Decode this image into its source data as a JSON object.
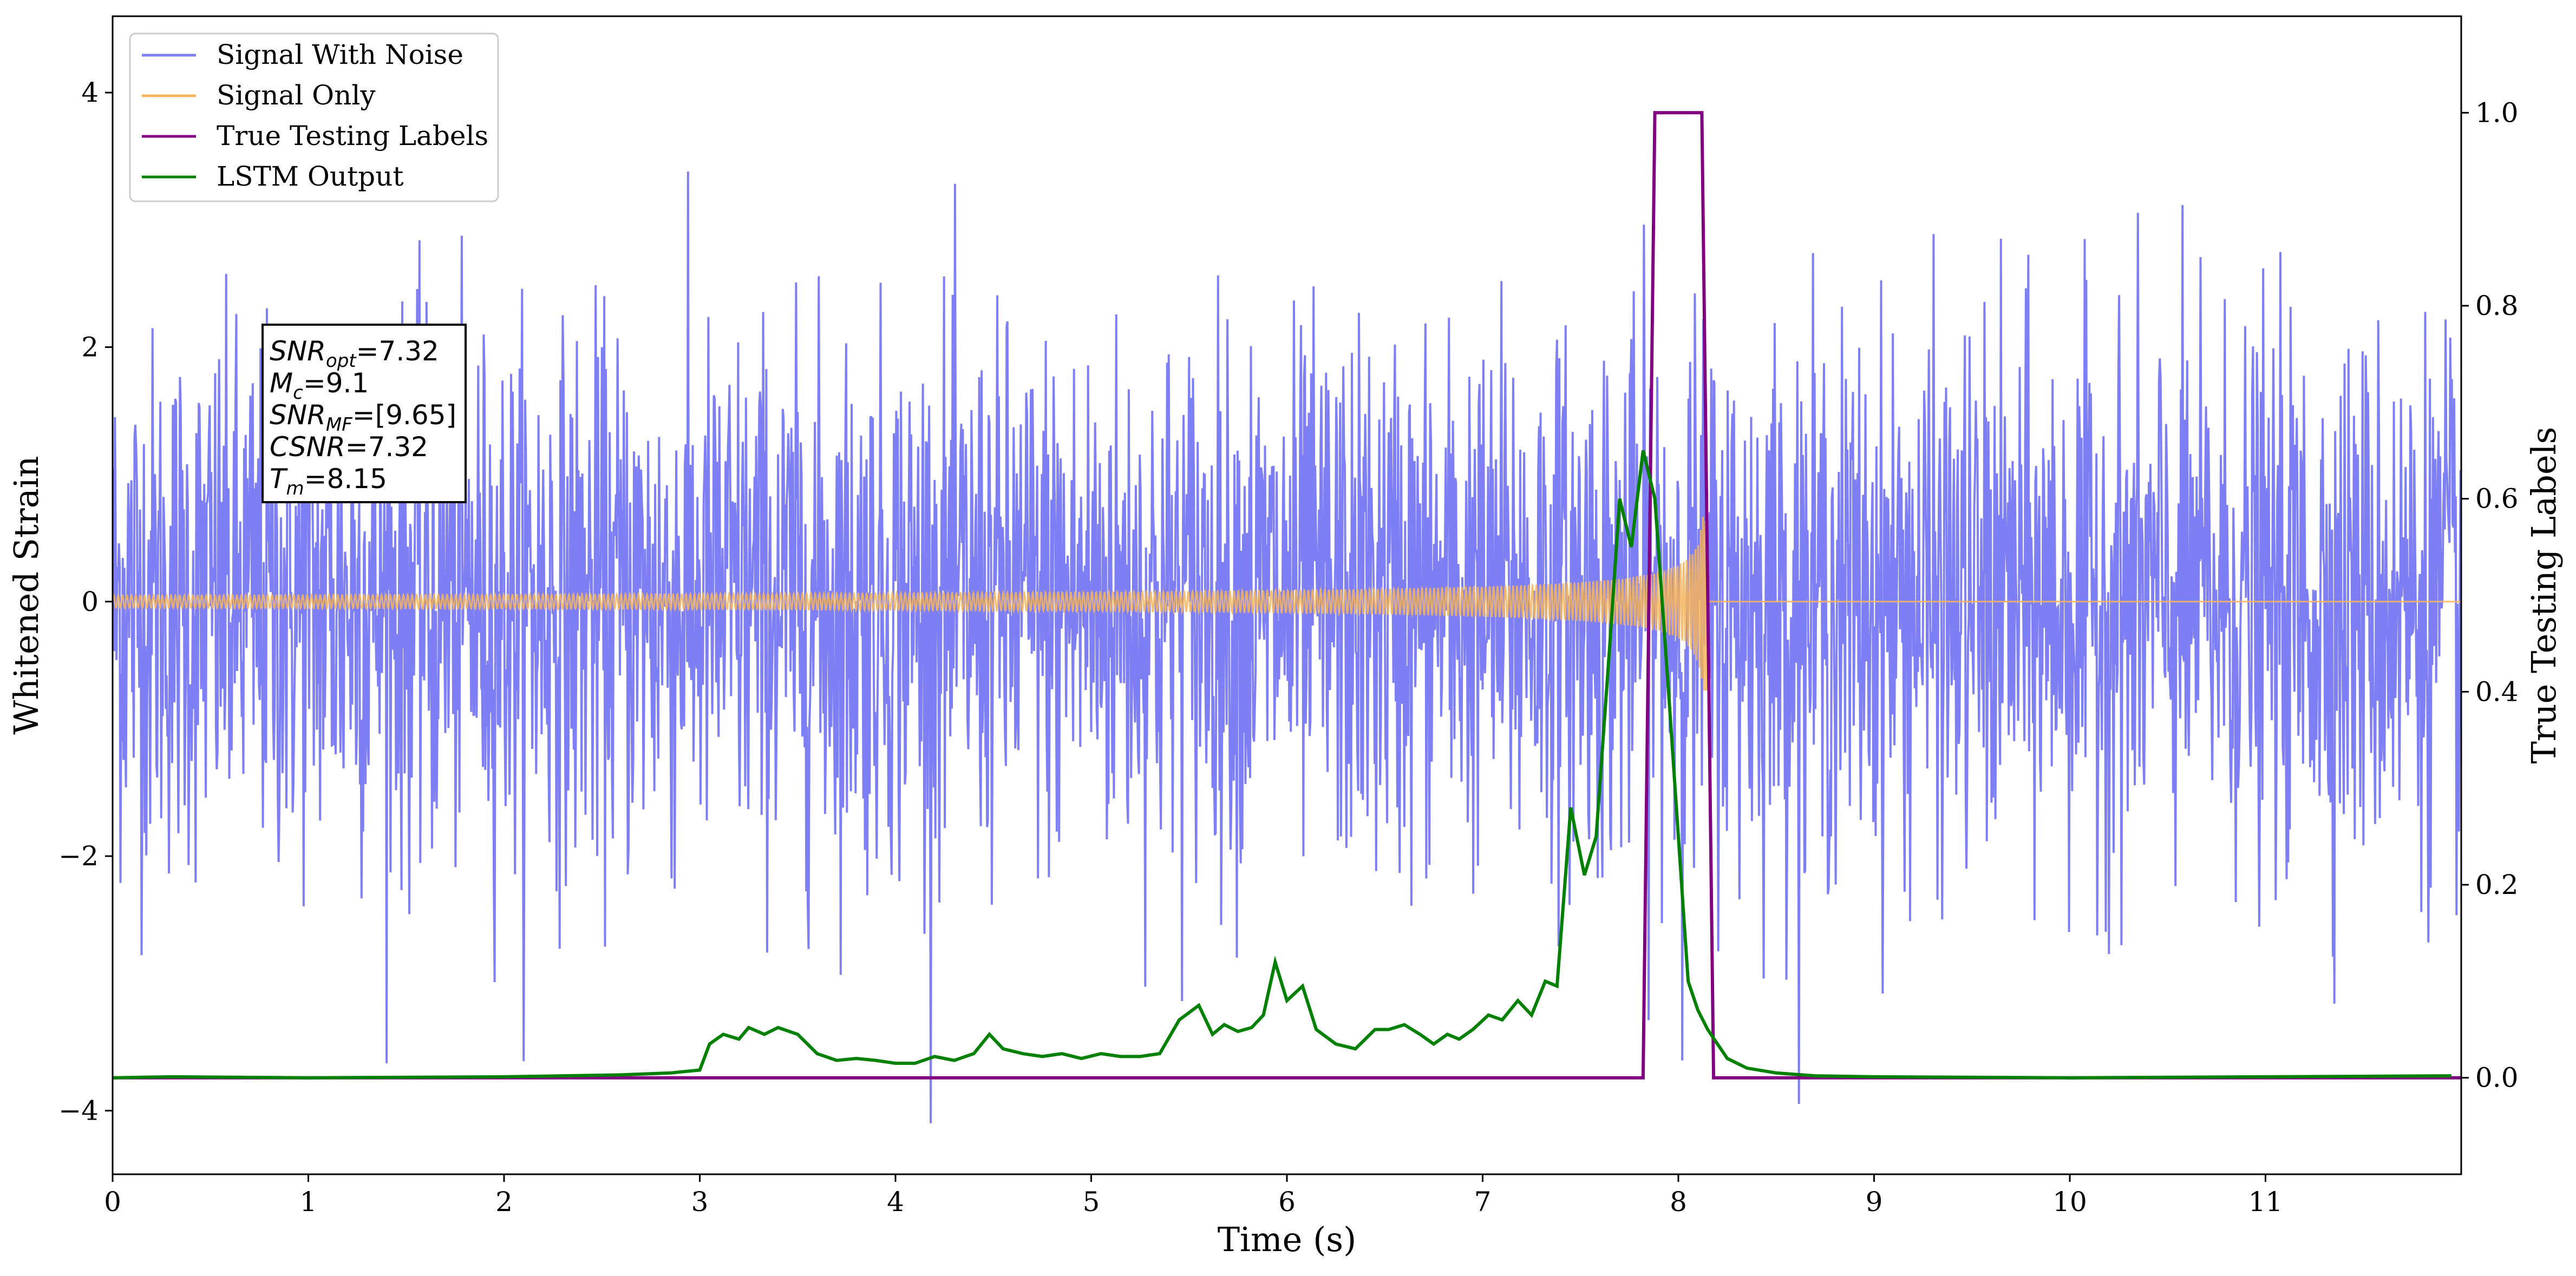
{
  "chart_data": {
    "type": "line",
    "xlabel": "Time (s)",
    "ylabel": "Whitened Strain",
    "y2label": "True Testing Labels",
    "xlim": [
      0,
      12
    ],
    "ylim": [
      -4.5,
      4.6
    ],
    "y2lim": [
      -0.1,
      1.1
    ],
    "x_ticks": [
      0,
      1,
      2,
      3,
      4,
      5,
      6,
      7,
      8,
      9,
      10,
      11
    ],
    "x_tick_labels": [
      "0",
      "1",
      "2",
      "3",
      "4",
      "5",
      "6",
      "7",
      "8",
      "9",
      "10",
      "11"
    ],
    "y_ticks": [
      -4,
      -2,
      0,
      2,
      4
    ],
    "y_tick_labels": [
      "−4",
      "−2",
      "0",
      "2",
      "4"
    ],
    "y2_ticks": [
      0.0,
      0.2,
      0.4,
      0.6,
      0.8,
      1.0
    ],
    "y2_tick_labels": [
      "0.0",
      "0.2",
      "0.4",
      "0.6",
      "0.8",
      "1.0"
    ],
    "grid": false,
    "legend_position": "top-left",
    "colors": {
      "noise": "#7f7ff5",
      "signal": "#f5b55c",
      "labels": "#800080",
      "lstm": "#008000"
    },
    "series": [
      {
        "name": "Signal With Noise",
        "axis": "left",
        "style": "dense noise, roughly Gaussian with std ~1.0, extremes near ±4.2",
        "x_range": [
          0,
          12
        ],
        "std": 1.0
      },
      {
        "name": "Signal Only",
        "axis": "left",
        "style": "chirp: oscillation with amplitude growing from ~0.02 to ~0.7, ending at merger",
        "x_range": [
          0,
          8.15
        ],
        "amplitude_start": 0.02,
        "amplitude_end": 0.7
      },
      {
        "name": "True Testing Labels",
        "axis": "right",
        "x": [
          0,
          7.82,
          7.88,
          8.12,
          8.18,
          12
        ],
        "values": [
          0,
          0,
          1,
          1,
          0,
          0
        ]
      },
      {
        "name": "LSTM Output",
        "axis": "right",
        "x": [
          0,
          0.3,
          1.0,
          2.0,
          2.6,
          2.85,
          3.0,
          3.05,
          3.12,
          3.2,
          3.25,
          3.33,
          3.4,
          3.5,
          3.6,
          3.7,
          3.8,
          3.9,
          4.0,
          4.1,
          4.2,
          4.3,
          4.4,
          4.48,
          4.55,
          4.65,
          4.75,
          4.85,
          4.95,
          5.05,
          5.15,
          5.25,
          5.35,
          5.45,
          5.55,
          5.62,
          5.68,
          5.75,
          5.82,
          5.88,
          5.94,
          6.0,
          6.08,
          6.15,
          6.25,
          6.35,
          6.45,
          6.52,
          6.6,
          6.68,
          6.75,
          6.82,
          6.88,
          6.95,
          7.03,
          7.1,
          7.18,
          7.25,
          7.32,
          7.38,
          7.45,
          7.52,
          7.58,
          7.65,
          7.7,
          7.76,
          7.82,
          7.88,
          7.95,
          8.0,
          8.05,
          8.1,
          8.15,
          8.25,
          8.35,
          8.5,
          8.7,
          9.0,
          10.0,
          11.0,
          11.95
        ],
        "values": [
          0.0,
          0.001,
          0.0,
          0.001,
          0.003,
          0.005,
          0.008,
          0.035,
          0.045,
          0.04,
          0.052,
          0.045,
          0.052,
          0.045,
          0.025,
          0.018,
          0.02,
          0.018,
          0.015,
          0.015,
          0.022,
          0.018,
          0.025,
          0.045,
          0.03,
          0.025,
          0.022,
          0.025,
          0.02,
          0.025,
          0.022,
          0.022,
          0.025,
          0.06,
          0.075,
          0.045,
          0.055,
          0.048,
          0.052,
          0.065,
          0.12,
          0.08,
          0.095,
          0.05,
          0.035,
          0.03,
          0.05,
          0.05,
          0.055,
          0.045,
          0.035,
          0.045,
          0.04,
          0.05,
          0.065,
          0.06,
          0.08,
          0.065,
          0.1,
          0.095,
          0.28,
          0.21,
          0.25,
          0.45,
          0.6,
          0.55,
          0.65,
          0.6,
          0.4,
          0.25,
          0.1,
          0.07,
          0.05,
          0.02,
          0.01,
          0.005,
          0.002,
          0.001,
          0.0,
          0.001,
          0.002
        ]
      }
    ],
    "annotation": {
      "lines": [
        {
          "main": "SNR",
          "sub": "opt",
          "rest": "=7.32"
        },
        {
          "main": "M",
          "sub": "c",
          "rest": "=9.1"
        },
        {
          "main": "SNR",
          "sub": "MF",
          "rest": "=[9.65]"
        },
        {
          "main": "CSNR",
          "sub": "",
          "rest": "=7.32"
        },
        {
          "main": "T",
          "sub": "m",
          "rest": "=8.15"
        }
      ]
    }
  }
}
